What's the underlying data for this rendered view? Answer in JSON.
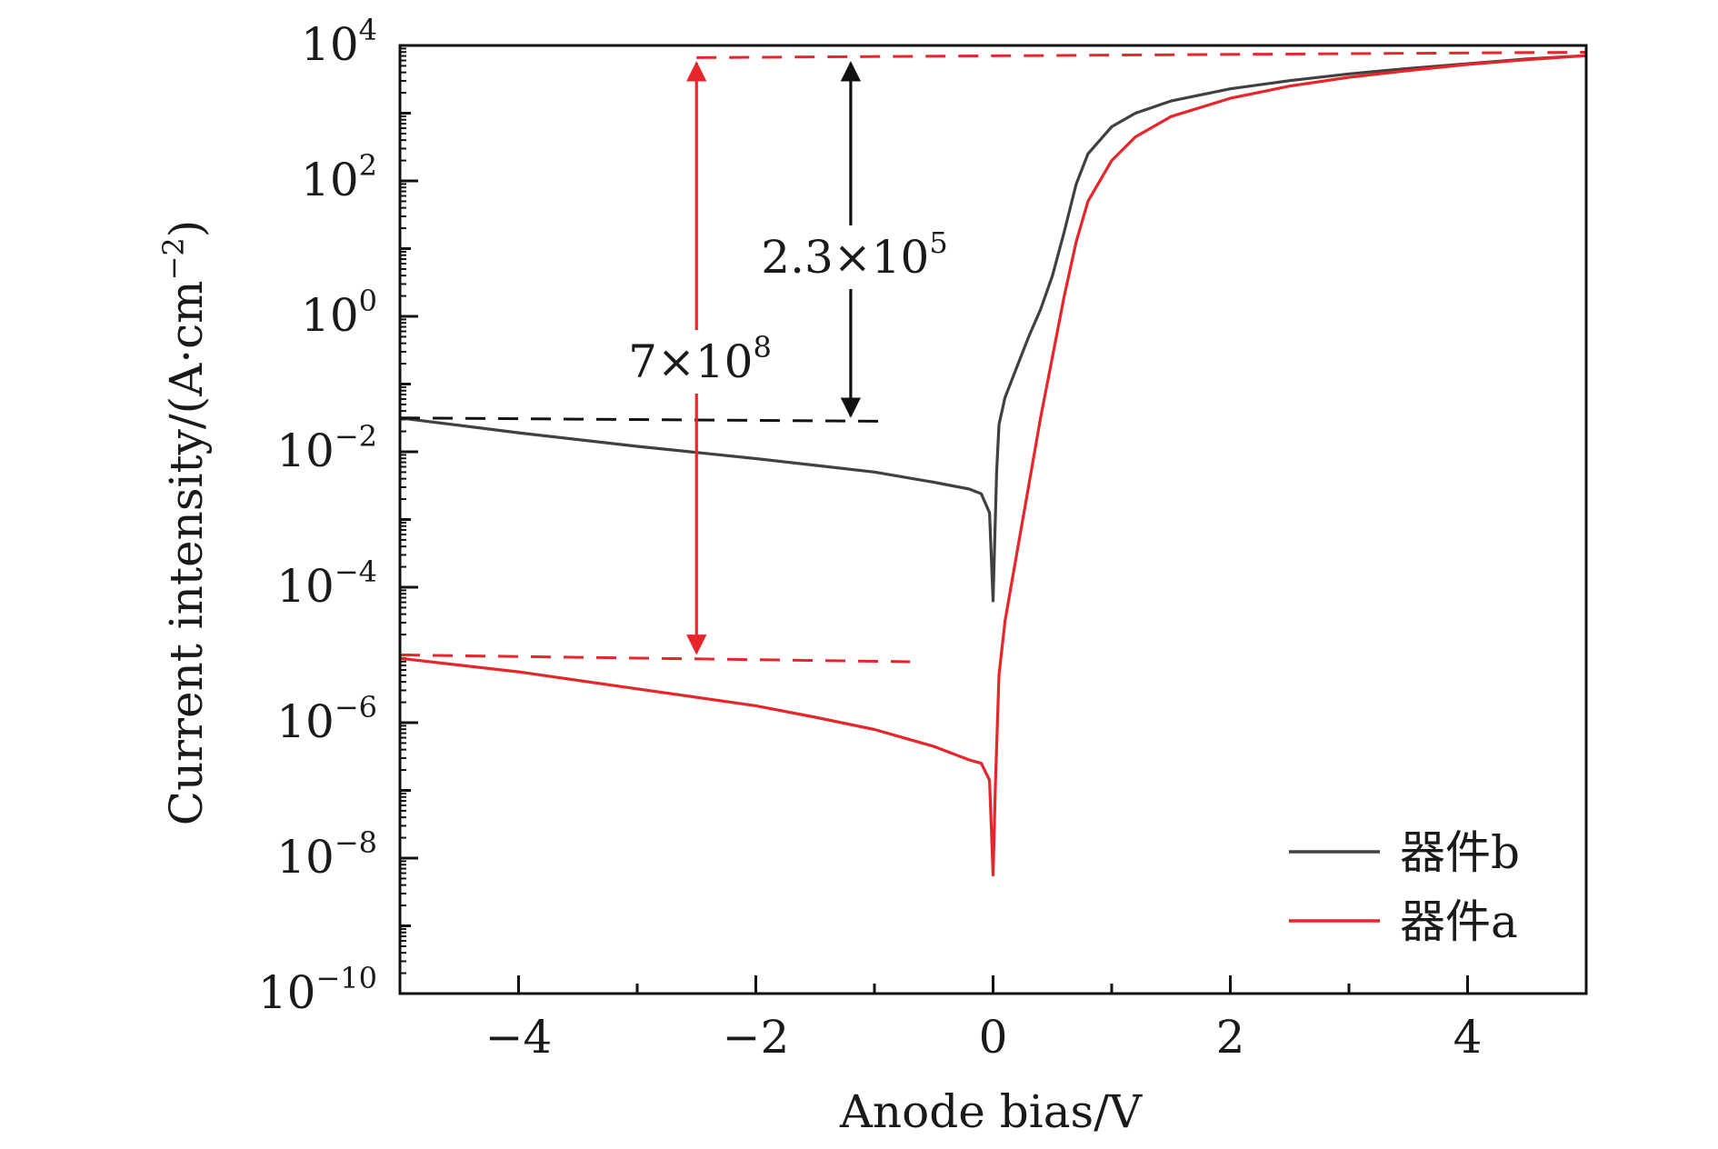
{
  "chart_data": {
    "type": "line",
    "title": "",
    "xlabel": "Anode bias/V",
    "ylabel_main": "Current intensity/(A·cm",
    "ylabel_sup": "−2",
    "ylabel_close": ")",
    "yscale": "log",
    "xlim": [
      -5,
      5
    ],
    "ylim_exp": [
      -10,
      4
    ],
    "x_ticks": [
      {
        "value": -4,
        "label": "−4"
      },
      {
        "value": -2,
        "label": "−2"
      },
      {
        "value": 0,
        "label": "0"
      },
      {
        "value": 2,
        "label": "2"
      },
      {
        "value": 4,
        "label": "4"
      }
    ],
    "y_ticks": [
      {
        "exp": 4,
        "base": "10",
        "sup": "4"
      },
      {
        "exp": 2,
        "base": "10",
        "sup": "2"
      },
      {
        "exp": 0,
        "base": "10",
        "sup": "0"
      },
      {
        "exp": -2,
        "base": "10",
        "sup": "−2"
      },
      {
        "exp": -4,
        "base": "10",
        "sup": "−4"
      },
      {
        "exp": -6,
        "base": "10",
        "sup": "−6"
      },
      {
        "exp": -8,
        "base": "10",
        "sup": "−8"
      },
      {
        "exp": -10,
        "base": "10",
        "sup": "−10"
      }
    ],
    "series": [
      {
        "name": "器件b",
        "color": "#404040",
        "points": [
          [
            -5,
            -1.5
          ],
          [
            -4,
            -1.72
          ],
          [
            -3,
            -1.92
          ],
          [
            -2,
            -2.1
          ],
          [
            -1.5,
            -2.2
          ],
          [
            -1,
            -2.3
          ],
          [
            -0.5,
            -2.45
          ],
          [
            -0.2,
            -2.55
          ],
          [
            -0.1,
            -2.62
          ],
          [
            -0.03,
            -2.9
          ],
          [
            0,
            -4.2
          ],
          [
            0.03,
            -2.3
          ],
          [
            0.05,
            -1.6
          ],
          [
            0.1,
            -1.2
          ],
          [
            0.2,
            -0.75
          ],
          [
            0.3,
            -0.3
          ],
          [
            0.4,
            0.1
          ],
          [
            0.5,
            0.6
          ],
          [
            0.6,
            1.25
          ],
          [
            0.7,
            1.95
          ],
          [
            0.8,
            2.4
          ],
          [
            1,
            2.8
          ],
          [
            1.2,
            3.0
          ],
          [
            1.5,
            3.18
          ],
          [
            2,
            3.36
          ],
          [
            2.5,
            3.48
          ],
          [
            3,
            3.58
          ],
          [
            3.5,
            3.66
          ],
          [
            4,
            3.73
          ],
          [
            4.5,
            3.8
          ],
          [
            5,
            3.85
          ]
        ]
      },
      {
        "name": "器件a",
        "color": "#e8252b",
        "points": [
          [
            -5,
            -5.05
          ],
          [
            -4,
            -5.25
          ],
          [
            -3,
            -5.5
          ],
          [
            -2,
            -5.75
          ],
          [
            -1.5,
            -5.92
          ],
          [
            -1,
            -6.1
          ],
          [
            -0.5,
            -6.35
          ],
          [
            -0.2,
            -6.55
          ],
          [
            -0.1,
            -6.6
          ],
          [
            -0.03,
            -6.85
          ],
          [
            0,
            -8.25
          ],
          [
            0.02,
            -6.9
          ],
          [
            0.05,
            -5.3
          ],
          [
            0.1,
            -4.5
          ],
          [
            0.2,
            -3.5
          ],
          [
            0.3,
            -2.5
          ],
          [
            0.4,
            -1.5
          ],
          [
            0.5,
            -0.6
          ],
          [
            0.6,
            0.3
          ],
          [
            0.7,
            1.1
          ],
          [
            0.8,
            1.7
          ],
          [
            1,
            2.3
          ],
          [
            1.2,
            2.65
          ],
          [
            1.5,
            2.95
          ],
          [
            2,
            3.22
          ],
          [
            2.5,
            3.4
          ],
          [
            3,
            3.53
          ],
          [
            3.5,
            3.63
          ],
          [
            4,
            3.72
          ],
          [
            4.5,
            3.79
          ],
          [
            5,
            3.85
          ]
        ]
      }
    ],
    "reference_lines": [
      {
        "color": "#e8252b",
        "x": [
          -2.5,
          5
        ],
        "y_exp": [
          3.82,
          3.9
        ]
      },
      {
        "color": "#111111",
        "x": [
          -5,
          -0.9
        ],
        "y_exp": [
          -1.5,
          -1.55
        ]
      },
      {
        "color": "#e8252b",
        "x": [
          -5,
          -0.7
        ],
        "y_exp": [
          -5.0,
          -5.1
        ]
      }
    ],
    "annotations": [
      {
        "label_main": "2.3×10",
        "label_sup": "5",
        "color": "#111111",
        "arrow_x": -1.2,
        "arrow_y_exp": [
          3.82,
          -1.55
        ]
      },
      {
        "label_main": "7×10",
        "label_sup": "8",
        "color": "#e8252b",
        "arrow_x": -2.5,
        "arrow_y_exp": [
          3.82,
          -5.05
        ]
      }
    ],
    "legend": {
      "position": "bottom-right",
      "entries": [
        {
          "label": "器件b",
          "color": "#404040"
        },
        {
          "label": "器件a",
          "color": "#e8252b"
        }
      ]
    }
  }
}
